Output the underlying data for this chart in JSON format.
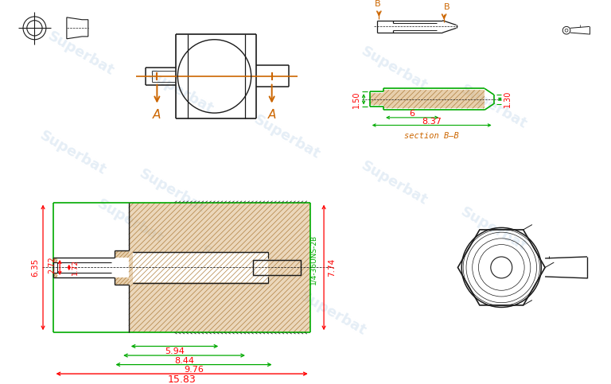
{
  "bg_color": "#ffffff",
  "lc": "#1a1a1a",
  "rc": "#ff0000",
  "gc": "#00aa00",
  "oc": "#cc6600",
  "wm_color": "#ccdded",
  "wm_alpha": 0.5,
  "wm_text": "Superbat",
  "section_label": "section B—B",
  "dims_bottom": [
    "5.94",
    "8.44",
    "9.76",
    "15.83"
  ],
  "dims_left": [
    "6.35",
    "2.72",
    "1.72"
  ],
  "dim_right": "7.74",
  "dim_thread": "1/4-36UNS-2B",
  "sec_w1": "6",
  "sec_w2": "8.37",
  "sec_h1": "1.50",
  "sec_h2": "1.30",
  "label_A": "A",
  "label_B": "B",
  "hatch_color": "#d4a868",
  "hatch_lc": "#b08040"
}
